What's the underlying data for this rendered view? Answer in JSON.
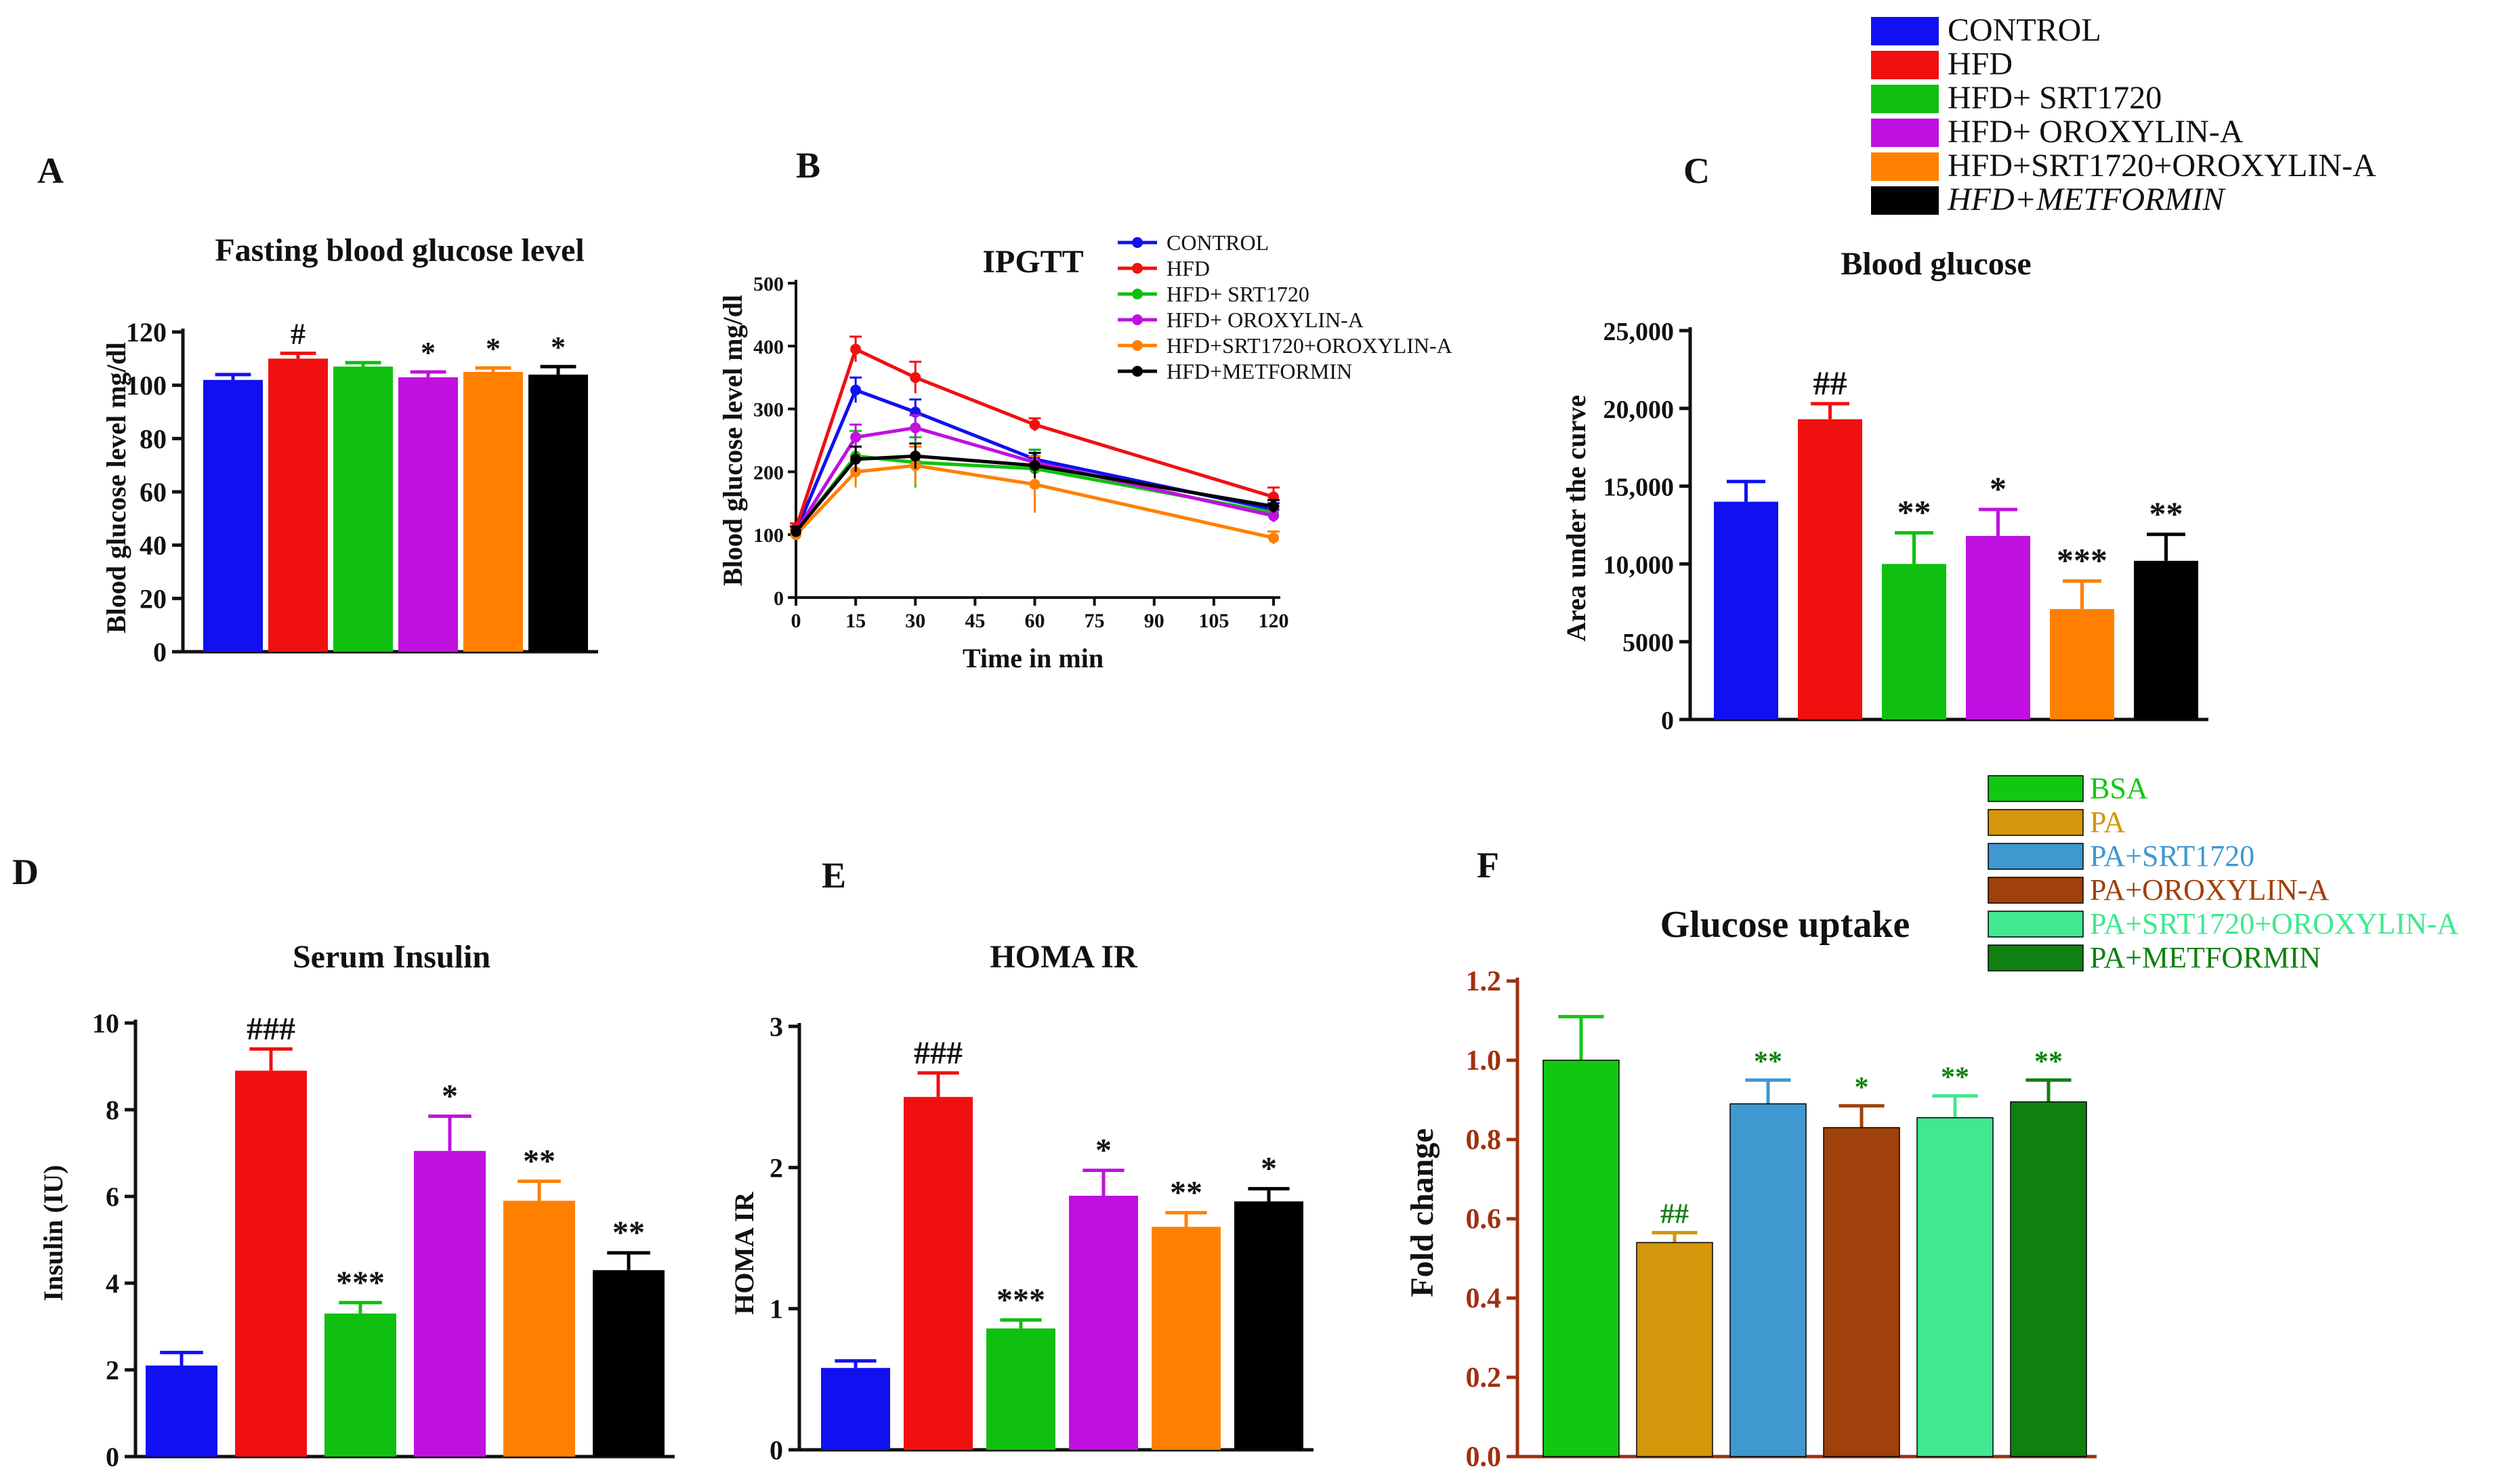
{
  "colors": {
    "control": "#1010f0",
    "hfd": "#f01010",
    "srt": "#10c010",
    "oroxylin": "#c010e0",
    "combo": "#ff8000",
    "metformin": "#000000",
    "bsa": "#10c810",
    "pa": "#d4960a",
    "pa_srt": "#3f98d0",
    "pa_orox": "#a0400a",
    "pa_combo": "#40e890",
    "pa_met": "#108010",
    "f_axis": "#a03010",
    "f_sig": "#108010"
  },
  "legend_top": {
    "items": [
      {
        "label": "CONTROL",
        "color": "#1010f0"
      },
      {
        "label": "HFD",
        "color": "#f01010"
      },
      {
        "label": "HFD+ SRT1720",
        "color": "#10c010"
      },
      {
        "label": "HFD+ OROXYLIN-A",
        "color": "#c010e0"
      },
      {
        "label": "HFD+SRT1720+OROXYLIN-A",
        "color": "#ff8000"
      },
      {
        "label": "HFD+METFORMIN",
        "color": "#000000"
      }
    ]
  },
  "legend_f": {
    "items": [
      {
        "label": "BSA",
        "color": "#10c810"
      },
      {
        "label": "PA",
        "color": "#d4960a"
      },
      {
        "label": "PA+SRT1720",
        "color": "#3f98d0"
      },
      {
        "label": "PA+OROXYLIN-A",
        "color": "#a0400a"
      },
      {
        "label": "PA+SRT1720+OROXYLIN-A",
        "color": "#40e890"
      },
      {
        "label": "PA+METFORMIN",
        "color": "#108010"
      }
    ]
  },
  "chart_data": [
    {
      "panel": "A",
      "type": "bar",
      "title": "Fasting blood glucose level",
      "xlabel": "",
      "ylabel": "Blood glucose level mg/dl",
      "ylim": [
        0,
        120
      ],
      "yticks": [
        "0",
        "20",
        "40",
        "60",
        "80",
        "100",
        "120"
      ],
      "categories": [
        "CONTROL",
        "HFD",
        "HFD+ SRT1720",
        "HFD+ OROXYLIN-A",
        "HFD+SRT1720+OROXYLIN-A",
        "HFD+METFORMIN"
      ],
      "values": [
        102,
        110,
        107,
        103,
        105,
        104
      ],
      "errors": [
        2,
        2,
        1.5,
        2,
        1.5,
        3
      ],
      "significance": [
        "",
        "#",
        "",
        "*",
        "*",
        "*"
      ]
    },
    {
      "panel": "B",
      "type": "line",
      "title": "IPGTT",
      "xlabel": "Time in min",
      "ylabel": "Blood glucose level mg/dl",
      "xlim": [
        0,
        120
      ],
      "ylim": [
        0,
        500
      ],
      "xticks": [
        "0",
        "15",
        "30",
        "45",
        "60",
        "75",
        "90",
        "105",
        "120"
      ],
      "yticks": [
        "0",
        "100",
        "200",
        "300",
        "400",
        "500"
      ],
      "x": [
        0,
        15,
        30,
        60,
        120
      ],
      "series": [
        {
          "name": "CONTROL",
          "values": [
            105,
            330,
            295,
            220,
            140
          ],
          "errors": [
            8,
            20,
            20,
            15,
            10
          ]
        },
        {
          "name": "HFD",
          "values": [
            110,
            395,
            350,
            275,
            160
          ],
          "errors": [
            8,
            20,
            25,
            10,
            15
          ]
        },
        {
          "name": "HFD+ SRT1720",
          "values": [
            105,
            225,
            215,
            205,
            135
          ],
          "errors": [
            8,
            40,
            40,
            30,
            10
          ]
        },
        {
          "name": "HFD+ OROXYLIN-A",
          "values": [
            105,
            255,
            270,
            215,
            130
          ],
          "errors": [
            8,
            20,
            20,
            15,
            10
          ]
        },
        {
          "name": "HFD+SRT1720+OROXYLIN-A",
          "values": [
            100,
            200,
            210,
            180,
            95
          ],
          "errors": [
            8,
            25,
            30,
            45,
            10
          ]
        },
        {
          "name": "HFD+METFORMIN",
          "values": [
            105,
            220,
            225,
            210,
            145
          ],
          "errors": [
            8,
            20,
            20,
            20,
            10
          ]
        }
      ]
    },
    {
      "panel": "C",
      "type": "bar",
      "title": "Blood glucose",
      "xlabel": "",
      "ylabel": "Area under the curve",
      "ylim": [
        0,
        25000
      ],
      "yticks": [
        "0",
        "5000",
        "10,000",
        "15,000",
        "20,000",
        "25,000"
      ],
      "categories": [
        "CONTROL",
        "HFD",
        "HFD+ SRT1720",
        "HFD+ OROXYLIN-A",
        "HFD+SRT1720+OROXYLIN-A",
        "HFD+METFORMIN"
      ],
      "values": [
        14000,
        19300,
        10000,
        11800,
        7100,
        10200
      ],
      "errors": [
        1300,
        1000,
        2000,
        1700,
        1800,
        1700
      ],
      "significance": [
        "",
        "##",
        "**",
        "*",
        "***",
        "**"
      ]
    },
    {
      "panel": "D",
      "type": "bar",
      "title": "Serum Insulin",
      "xlabel": "",
      "ylabel": "Insulin (IU)",
      "ylim": [
        0,
        10
      ],
      "yticks": [
        "0",
        "2",
        "4",
        "6",
        "8",
        "10"
      ],
      "categories": [
        "CONTROL",
        "HFD",
        "HFD+ SRT1720",
        "HFD+ OROXYLIN-A",
        "HFD+SRT1720+OROXYLIN-A",
        "HFD+METFORMIN"
      ],
      "values": [
        2.1,
        8.9,
        3.3,
        7.05,
        5.9,
        4.3
      ],
      "errors": [
        0.3,
        0.5,
        0.25,
        0.8,
        0.45,
        0.4
      ],
      "significance": [
        "",
        "###",
        "***",
        "*",
        "**",
        "**"
      ]
    },
    {
      "panel": "E",
      "type": "bar",
      "title": "HOMA IR",
      "xlabel": "",
      "ylabel": "HOMA IR",
      "ylim": [
        0,
        3
      ],
      "yticks": [
        "0",
        "1",
        "2",
        "3"
      ],
      "categories": [
        "CONTROL",
        "HFD",
        "HFD+ SRT1720",
        "HFD+ OROXYLIN-A",
        "HFD+SRT1720+OROXYLIN-A",
        "HFD+METFORMIN"
      ],
      "values": [
        0.58,
        2.5,
        0.86,
        1.8,
        1.58,
        1.76
      ],
      "errors": [
        0.05,
        0.17,
        0.06,
        0.18,
        0.1,
        0.09
      ],
      "significance": [
        "",
        "###",
        "***",
        "*",
        "**",
        "*"
      ]
    },
    {
      "panel": "F",
      "type": "bar",
      "title": "Glucose uptake",
      "xlabel": "",
      "ylabel": "Fold change",
      "ylim": [
        0,
        1.2
      ],
      "yticks": [
        "0.0",
        "0.2",
        "0.4",
        "0.6",
        "0.8",
        "1.0",
        "1.2"
      ],
      "categories": [
        "BSA",
        "PA",
        "PA+SRT1720",
        "PA+OROXYLIN-A",
        "PA+SRT1720+OROXYLIN-A",
        "PA+METFORMIN"
      ],
      "values": [
        1.0,
        0.54,
        0.89,
        0.83,
        0.855,
        0.895
      ],
      "errors": [
        0.11,
        0.025,
        0.06,
        0.055,
        0.055,
        0.055
      ],
      "significance": [
        "",
        "##",
        "**",
        "*",
        "**",
        "**"
      ]
    }
  ]
}
